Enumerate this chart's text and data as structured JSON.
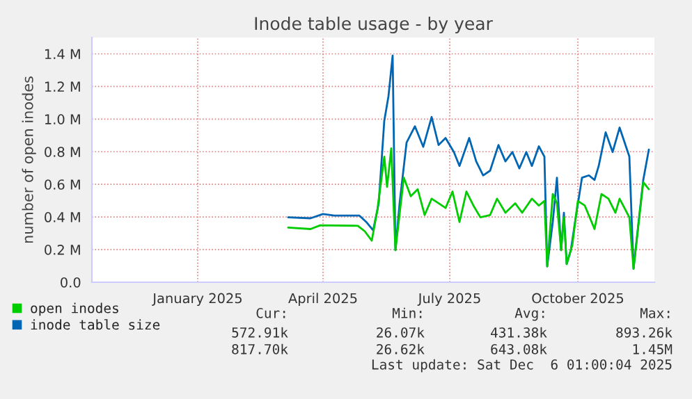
{
  "chart_data": {
    "type": "line",
    "title": "Inode table usage - by year",
    "ylabel": "number of open inodes",
    "xlim": [
      "2024-10-17",
      "2025-11-25"
    ],
    "xticks": [
      {
        "value": "2025-01-01",
        "label": "January 2025"
      },
      {
        "value": "2025-04-01",
        "label": "April 2025"
      },
      {
        "value": "2025-07-01",
        "label": "July 2025"
      },
      {
        "value": "2025-10-01",
        "label": "October 2025"
      }
    ],
    "ylim": [
      0,
      1500000
    ],
    "yticks": [
      {
        "value": 0,
        "label": "0.0"
      },
      {
        "value": 200000,
        "label": "0.2 M"
      },
      {
        "value": 400000,
        "label": "0.4 M"
      },
      {
        "value": 600000,
        "label": "0.6 M"
      },
      {
        "value": 800000,
        "label": "0.8 M"
      },
      {
        "value": 1000000,
        "label": "1.0 M"
      },
      {
        "value": 1200000,
        "label": "1.2 M"
      },
      {
        "value": 1400000,
        "label": "1.4 M"
      }
    ],
    "grid": true,
    "legend": "bottom left",
    "series": [
      {
        "name": "open inodes",
        "color": "#00cc00",
        "x": [
          "2025-03-07",
          "2025-03-23",
          "2025-03-30",
          "2025-04-26",
          "2025-05-01",
          "2025-05-06",
          "2025-05-10",
          "2025-05-15",
          "2025-05-17",
          "2025-05-20",
          "2025-05-23",
          "2025-05-29",
          "2025-06-03",
          "2025-06-08",
          "2025-06-13",
          "2025-06-18",
          "2025-06-23",
          "2025-06-28",
          "2025-07-03",
          "2025-07-08",
          "2025-07-13",
          "2025-07-18",
          "2025-07-23",
          "2025-07-30",
          "2025-08-04",
          "2025-08-10",
          "2025-08-17",
          "2025-08-22",
          "2025-08-29",
          "2025-09-03",
          "2025-09-07",
          "2025-09-09",
          "2025-09-13",
          "2025-09-16",
          "2025-09-19",
          "2025-09-21",
          "2025-09-23",
          "2025-09-27",
          "2025-10-01",
          "2025-10-06",
          "2025-10-13",
          "2025-10-18",
          "2025-10-23",
          "2025-10-28",
          "2025-10-31",
          "2025-11-07",
          "2025-11-10",
          "2025-11-17",
          "2025-11-21"
        ],
        "values": [
          335000,
          326000,
          349000,
          346000,
          312000,
          255000,
          441000,
          770000,
          584000,
          821000,
          197000,
          641000,
          527000,
          570000,
          412000,
          512000,
          484000,
          455000,
          556000,
          369000,
          556000,
          470000,
          398000,
          412000,
          512000,
          426000,
          484000,
          426000,
          512000,
          470000,
          498000,
          97000,
          541000,
          484000,
          197000,
          398000,
          111000,
          226000,
          498000,
          470000,
          326000,
          541000,
          512000,
          426000,
          512000,
          398000,
          83000,
          613000,
          570000
        ]
      },
      {
        "name": "inode table size",
        "color": "#0066b3",
        "x": [
          "2025-03-07",
          "2025-03-23",
          "2025-04-01",
          "2025-04-09",
          "2025-04-22",
          "2025-04-27",
          "2025-05-02",
          "2025-05-07",
          "2025-05-11",
          "2025-05-15",
          "2025-05-18",
          "2025-05-21",
          "2025-05-23",
          "2025-05-26",
          "2025-05-31",
          "2025-06-06",
          "2025-06-12",
          "2025-06-18",
          "2025-06-23",
          "2025-06-28",
          "2025-07-04",
          "2025-07-08",
          "2025-07-15",
          "2025-07-20",
          "2025-07-25",
          "2025-07-30",
          "2025-08-05",
          "2025-08-10",
          "2025-08-15",
          "2025-08-20",
          "2025-08-25",
          "2025-08-29",
          "2025-09-03",
          "2025-09-07",
          "2025-09-09",
          "2025-09-13",
          "2025-09-16",
          "2025-09-19",
          "2025-09-21",
          "2025-09-23",
          "2025-09-26",
          "2025-09-29",
          "2025-10-04",
          "2025-10-09",
          "2025-10-13",
          "2025-10-16",
          "2025-10-21",
          "2025-10-26",
          "2025-10-31",
          "2025-11-07",
          "2025-11-10",
          "2025-11-14",
          "2025-11-17",
          "2025-11-21"
        ],
        "values": [
          398000,
          392000,
          418000,
          409000,
          409000,
          409000,
          370000,
          318000,
          484000,
          990000,
          1140000,
          1390000,
          197000,
          484000,
          856000,
          956000,
          830000,
          1013000,
          841000,
          884000,
          798000,
          713000,
          884000,
          741000,
          655000,
          684000,
          841000,
          741000,
          798000,
          698000,
          798000,
          713000,
          833000,
          770000,
          97000,
          369000,
          641000,
          197000,
          426000,
          111000,
          197000,
          369000,
          641000,
          655000,
          627000,
          713000,
          919000,
          798000,
          948000,
          770000,
          83000,
          398000,
          627000,
          813000
        ]
      }
    ],
    "annotations": [
      "Cur:",
      "Min:",
      "Avg:",
      "Max:",
      "572.91k",
      "26.07k",
      "431.38k",
      "893.26k",
      "817.70k",
      "26.62k",
      "643.08k",
      "1.45M",
      "Last update: Sat Dec  6 01:00:04 2025"
    ]
  }
}
